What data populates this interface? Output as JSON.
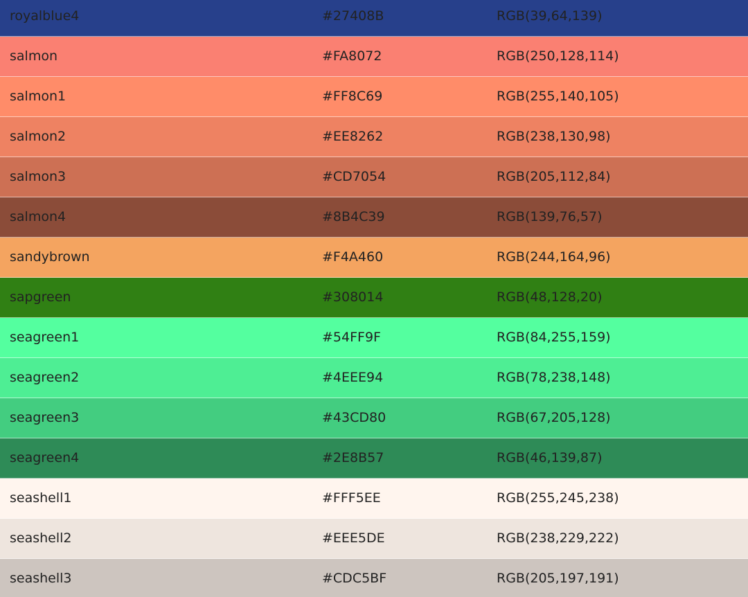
{
  "columns": [
    "name",
    "hex",
    "rgb"
  ],
  "rows": [
    {
      "name": "royalblue4",
      "hex": "#27408B",
      "rgb": "RGB(39,64,139)",
      "color": "#27408B"
    },
    {
      "name": "salmon",
      "hex": "#FA8072",
      "rgb": "RGB(250,128,114)",
      "color": "#FA8072"
    },
    {
      "name": "salmon1",
      "hex": "#FF8C69",
      "rgb": "RGB(255,140,105)",
      "color": "#FF8C69"
    },
    {
      "name": "salmon2",
      "hex": "#EE8262",
      "rgb": "RGB(238,130,98)",
      "color": "#EE8262"
    },
    {
      "name": "salmon3",
      "hex": "#CD7054",
      "rgb": "RGB(205,112,84)",
      "color": "#CD7054"
    },
    {
      "name": "salmon4",
      "hex": "#8B4C39",
      "rgb": "RGB(139,76,57)",
      "color": "#8B4C39"
    },
    {
      "name": "sandybrown",
      "hex": "#F4A460",
      "rgb": "RGB(244,164,96)",
      "color": "#F4A460"
    },
    {
      "name": "sapgreen",
      "hex": "#308014",
      "rgb": "RGB(48,128,20)",
      "color": "#308014"
    },
    {
      "name": "seagreen1",
      "hex": "#54FF9F",
      "rgb": "RGB(84,255,159)",
      "color": "#54FF9F"
    },
    {
      "name": "seagreen2",
      "hex": "#4EEE94",
      "rgb": "RGB(78,238,148)",
      "color": "#4EEE94"
    },
    {
      "name": "seagreen3",
      "hex": "#43CD80",
      "rgb": "RGB(67,205,128)",
      "color": "#43CD80"
    },
    {
      "name": "seagreen4",
      "hex": "#2E8B57",
      "rgb": "RGB(46,139,87)",
      "color": "#2E8B57"
    },
    {
      "name": "seashell1",
      "hex": "#FFF5EE",
      "rgb": "RGB(255,245,238)",
      "color": "#FFF5EE"
    },
    {
      "name": "seashell2",
      "hex": "#EEE5DE",
      "rgb": "RGB(238,229,222)",
      "color": "#EEE5DE"
    },
    {
      "name": "seashell3",
      "hex": "#CDC5BF",
      "rgb": "RGB(205,197,191)",
      "color": "#CDC5BF"
    }
  ]
}
